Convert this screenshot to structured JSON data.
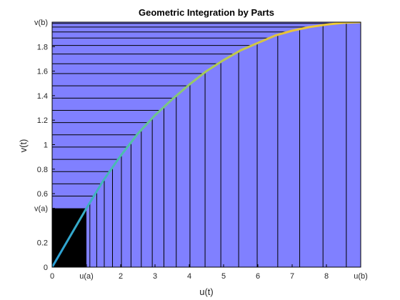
{
  "chart_data": {
    "type": "area",
    "title": "Geometric Integration by Parts",
    "xlabel": "u(t)",
    "ylabel": "v(t)",
    "xlim": [
      0,
      9
    ],
    "ylim": [
      0,
      2
    ],
    "grid": false,
    "x_ticks": [
      {
        "value": 0,
        "label": "0"
      },
      {
        "value": 1,
        "label": "u(a)"
      },
      {
        "value": 2,
        "label": "2"
      },
      {
        "value": 3,
        "label": "3"
      },
      {
        "value": 4,
        "label": "4"
      },
      {
        "value": 5,
        "label": "5"
      },
      {
        "value": 6,
        "label": "6"
      },
      {
        "value": 7,
        "label": "7"
      },
      {
        "value": 8,
        "label": "8"
      },
      {
        "value": 9,
        "label": "u(b)"
      }
    ],
    "y_ticks": [
      {
        "value": 0,
        "label": "0"
      },
      {
        "value": 0.2,
        "label": "0.2"
      },
      {
        "value": 0.48,
        "label": "v(a)"
      },
      {
        "value": 0.6,
        "label": "0.6"
      },
      {
        "value": 0.8,
        "label": "0.8"
      },
      {
        "value": 1,
        "label": "1"
      },
      {
        "value": 1.2,
        "label": "1.2"
      },
      {
        "value": 1.4,
        "label": "1.4"
      },
      {
        "value": 1.6,
        "label": "1.6"
      },
      {
        "value": 1.8,
        "label": "1.8"
      },
      {
        "value": 2,
        "label": "v(b)"
      }
    ],
    "u_a": 1,
    "v_a": 0.48,
    "u_b": 9,
    "v_b": 2,
    "curve": {
      "x": [
        0,
        1,
        1.5,
        2,
        2.5,
        3,
        3.5,
        4,
        4.5,
        5,
        5.5,
        6,
        6.5,
        7,
        7.5,
        8,
        8.5,
        9
      ],
      "y": [
        0,
        0.48,
        0.71,
        0.91,
        1.09,
        1.24,
        1.37,
        1.49,
        1.6,
        1.69,
        1.77,
        1.83,
        1.89,
        1.93,
        1.96,
        1.98,
        1.995,
        2
      ]
    },
    "vertical_strip_x": [
      1.1,
      1.3,
      1.52,
      1.76,
      2.02,
      2.3,
      2.6,
      2.92,
      3.26,
      3.62,
      4.02,
      4.46,
      4.92,
      5.44,
      5.98,
      6.58,
      7.22,
      7.9,
      8.58
    ],
    "horizontal_strip_y": [
      0.58,
      0.68,
      0.78,
      0.88,
      0.98,
      1.08,
      1.18,
      1.28,
      1.38,
      1.48,
      1.58,
      1.66,
      1.74,
      1.81,
      1.87,
      1.92,
      1.96,
      1.99
    ],
    "colors": {
      "fill": "#8080ff",
      "background": "#000000",
      "curve_gradient": [
        "#2a9fd8",
        "#4fc2a8",
        "#a8cc55",
        "#e8c23a",
        "#f5d22e"
      ],
      "strip_line": "#000000"
    }
  }
}
